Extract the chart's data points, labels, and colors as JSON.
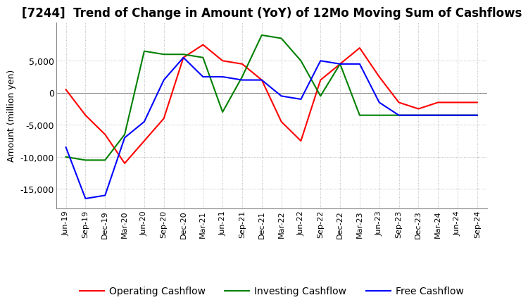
{
  "title": "[7244]  Trend of Change in Amount (YoY) of 12Mo Moving Sum of Cashflows",
  "ylabel": "Amount (million yen)",
  "x_labels": [
    "Jun-19",
    "Sep-19",
    "Dec-19",
    "Mar-20",
    "Jun-20",
    "Sep-20",
    "Dec-20",
    "Mar-21",
    "Jun-21",
    "Sep-21",
    "Dec-21",
    "Mar-22",
    "Jun-22",
    "Sep-22",
    "Dec-22",
    "Mar-23",
    "Jun-23",
    "Sep-23",
    "Dec-23",
    "Mar-24",
    "Jun-24",
    "Sep-24"
  ],
  "operating": [
    500,
    -3500,
    -6500,
    -11000,
    -7500,
    -4000,
    5500,
    7500,
    5000,
    4500,
    2000,
    -4500,
    -7500,
    2000,
    4500,
    7000,
    2500,
    -1500,
    -2500,
    -1500,
    -1500,
    -1500
  ],
  "investing": [
    -10000,
    -10500,
    -10500,
    -6500,
    6500,
    6000,
    6000,
    5500,
    -3000,
    2500,
    9000,
    8500,
    5000,
    -500,
    4500,
    -3500,
    -3500,
    -3500,
    -3500,
    -3500,
    -3500,
    -3500
  ],
  "free": [
    -8500,
    -16500,
    -16000,
    -7000,
    -4500,
    2000,
    5500,
    2500,
    2500,
    2000,
    2000,
    -500,
    -1000,
    5000,
    4500,
    4500,
    -1500,
    -3500,
    -3500,
    -3500,
    -3500,
    -3500
  ],
  "operating_color": "#ff0000",
  "investing_color": "#008000",
  "free_color": "#0000ff",
  "ylim": [
    -18000,
    11000
  ],
  "yticks": [
    -15000,
    -10000,
    -5000,
    0,
    5000
  ],
  "background_color": "#ffffff",
  "title_fontsize": 12,
  "axis_fontsize": 9,
  "tick_fontsize": 8,
  "legend_fontsize": 10,
  "line_width": 1.5
}
